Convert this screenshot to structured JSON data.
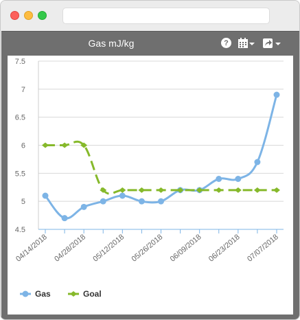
{
  "window": {
    "address_value": ""
  },
  "panel": {
    "title": "Gas mJ/kg",
    "help_glyph": "?",
    "icons": [
      "help-icon",
      "calendar-icon",
      "share-icon"
    ]
  },
  "chart_data": {
    "type": "line",
    "title": "Gas mJ/kg",
    "xlabel": "",
    "ylabel": "",
    "ylim": [
      4.5,
      7.5
    ],
    "yticks": [
      "4.5",
      "5",
      "5.5",
      "6",
      "6.5",
      "7",
      "7.5"
    ],
    "x": [
      "04/14/2018",
      "04/21/2018",
      "04/28/2018",
      "05/05/2018",
      "05/12/2018",
      "05/19/2018",
      "05/26/2018",
      "06/02/2018",
      "06/09/2018",
      "06/16/2018",
      "06/23/2018",
      "06/30/2018",
      "07/07/2018"
    ],
    "xtick_labels": [
      "04/14/2018",
      "04/28/2018",
      "05/12/2018",
      "05/26/2018",
      "06/09/2018",
      "06/23/2018",
      "07/07/2018"
    ],
    "grid": true,
    "legend_position": "bottom-left",
    "series": [
      {
        "name": "Gas",
        "color": "#7db4e6",
        "style": "solid",
        "values": [
          5.1,
          4.7,
          4.9,
          5.0,
          5.1,
          5.0,
          5.0,
          5.2,
          5.2,
          5.4,
          5.4,
          5.7,
          6.9
        ]
      },
      {
        "name": "Goal",
        "color": "#86b92b",
        "style": "dashed",
        "values": [
          6.0,
          6.0,
          6.0,
          5.2,
          5.2,
          5.2,
          5.2,
          5.2,
          5.2,
          5.2,
          5.2,
          5.2,
          5.2
        ]
      }
    ]
  }
}
